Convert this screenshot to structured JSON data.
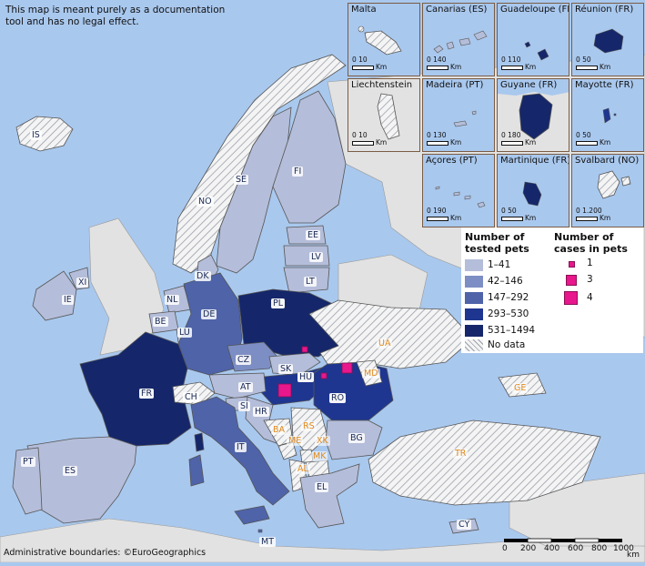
{
  "disclaimer": "This map is meant purely as a documentation tool and has no legal effect.",
  "attribution": "Administrative boundaries: ©EuroGeographics",
  "colors": {
    "sea": "#a9c8ee",
    "no_data_land": "#f0f0f0",
    "other_land": "#e2e2e2",
    "border": "#555555",
    "case_marker": "#e8178c"
  },
  "legend": {
    "tested_title": "Number of tested pets",
    "tested_classes": [
      {
        "label": "1–41",
        "color": "#b4bdd9"
      },
      {
        "label": "42–146",
        "color": "#7d8ec4"
      },
      {
        "label": "147–292",
        "color": "#4e63a8"
      },
      {
        "label": "293–530",
        "color": "#1e3690"
      },
      {
        "label": "531–1494",
        "color": "#15276a"
      }
    ],
    "no_data_label": "No data",
    "cases_title": "Number of cases in pets",
    "case_classes": [
      {
        "label": "1",
        "value": 1
      },
      {
        "label": "3",
        "value": 3
      },
      {
        "label": "4",
        "value": 4
      }
    ]
  },
  "insets": [
    {
      "name": "Malta",
      "scale": "0 10",
      "unit": "Km"
    },
    {
      "name": "Canarias (ES)",
      "scale": "0 140",
      "unit": "Km"
    },
    {
      "name": "Guadeloupe (FR)",
      "scale": "0 110",
      "unit": "Km"
    },
    {
      "name": "Réunion (FR)",
      "scale": "0 50",
      "unit": "Km"
    },
    {
      "name": "Liechtenstein",
      "scale": "0 10",
      "unit": "Km"
    },
    {
      "name": "Madeira (PT)",
      "scale": "0 130",
      "unit": "Km"
    },
    {
      "name": "Guyane (FR)",
      "scale": "0 180",
      "unit": "Km"
    },
    {
      "name": "Mayotte (FR)",
      "scale": "0 50",
      "unit": "Km"
    },
    {
      "name": "Açores (PT)",
      "scale": "0 190",
      "unit": "Km"
    },
    {
      "name": "Martinique (FR)",
      "scale": "0 50",
      "unit": "Km"
    },
    {
      "name": "Svalbard (NO)",
      "scale": "0 1.200",
      "unit": "Km"
    }
  ],
  "countries": [
    {
      "code": "IS",
      "tested_class": "No data"
    },
    {
      "code": "NO",
      "tested_class": "No data"
    },
    {
      "code": "SE",
      "tested_class": "1–41"
    },
    {
      "code": "FI",
      "tested_class": "1–41"
    },
    {
      "code": "EE",
      "tested_class": "1–41"
    },
    {
      "code": "LV",
      "tested_class": "1–41"
    },
    {
      "code": "LT",
      "tested_class": "1–41"
    },
    {
      "code": "DK",
      "tested_class": "1–41"
    },
    {
      "code": "IE",
      "tested_class": "1–41"
    },
    {
      "code": "XI",
      "tested_class": "1–41"
    },
    {
      "code": "NL",
      "tested_class": "1–41"
    },
    {
      "code": "BE",
      "tested_class": "1–41"
    },
    {
      "code": "LU",
      "tested_class": "1–41"
    },
    {
      "code": "DE",
      "tested_class": "147–292"
    },
    {
      "code": "PL",
      "tested_class": "531–1494"
    },
    {
      "code": "CZ",
      "tested_class": "42–146"
    },
    {
      "code": "SK",
      "tested_class": "1–41"
    },
    {
      "code": "HU",
      "tested_class": "293–530"
    },
    {
      "code": "RO",
      "tested_class": "293–530"
    },
    {
      "code": "FR",
      "tested_class": "531–1494"
    },
    {
      "code": "CH",
      "tested_class": "No data"
    },
    {
      "code": "AT",
      "tested_class": "1–41"
    },
    {
      "code": "SI",
      "tested_class": "1–41"
    },
    {
      "code": "HR",
      "tested_class": "1–41"
    },
    {
      "code": "IT",
      "tested_class": "147–292"
    },
    {
      "code": "BG",
      "tested_class": "1–41"
    },
    {
      "code": "PT",
      "tested_class": "1–41"
    },
    {
      "code": "ES",
      "tested_class": "1–41"
    },
    {
      "code": "EL",
      "tested_class": "1–41"
    },
    {
      "code": "CY",
      "tested_class": "1–41"
    },
    {
      "code": "MT",
      "tested_class": "147–292"
    },
    {
      "code": "UA",
      "tested_class": "No data"
    },
    {
      "code": "MD",
      "tested_class": "No data"
    },
    {
      "code": "BA",
      "tested_class": "No data"
    },
    {
      "code": "RS",
      "tested_class": "No data"
    },
    {
      "code": "ME",
      "tested_class": "No data"
    },
    {
      "code": "XK",
      "tested_class": "No data"
    },
    {
      "code": "MK",
      "tested_class": "No data"
    },
    {
      "code": "AL",
      "tested_class": "No data"
    },
    {
      "code": "TR",
      "tested_class": "No data"
    },
    {
      "code": "GE",
      "tested_class": "No data"
    }
  ],
  "cases": [
    {
      "location": "PL",
      "value": 1
    },
    {
      "location": "HU",
      "value": 4
    },
    {
      "location": "HU",
      "value": 1
    },
    {
      "location": "RO",
      "value": 3
    }
  ],
  "scale_bar": {
    "ticks": [
      "0",
      "200",
      "400",
      "600",
      "800",
      "1000"
    ],
    "unit": "km"
  }
}
